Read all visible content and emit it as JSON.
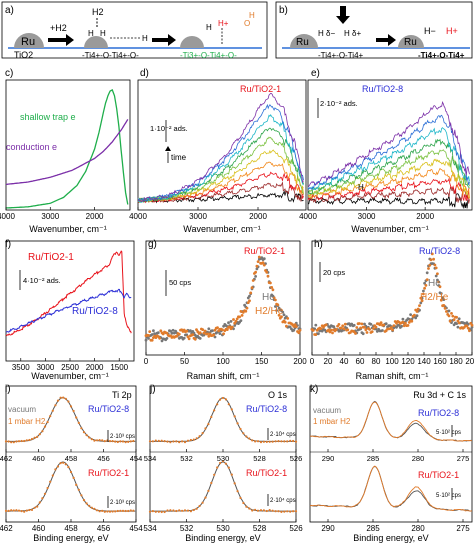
{
  "colors": {
    "red": "#e8131b",
    "blue": "#2c2fd6",
    "green": "#1fae4b",
    "purple": "#7b2fa8",
    "orange": "#e07b2b",
    "gray": "#777777",
    "dark": "#333333",
    "ru_gray": "#9a9a9a",
    "light_gray": "#cfcfcf"
  },
  "scheme_a": {
    "panel_label": "a)",
    "ru_label": "Ru",
    "support_label": "TiO2",
    "h2_reactant": "+H2",
    "h2_above": "H2",
    "h_atom": "H",
    "ti_o_chain_1": "-Ti4+-O-Ti4+-O-",
    "ti3_chain": "-Ti3+-O-Ti4+-O-",
    "h_plus": "H+",
    "oh_label": "O"
  },
  "scheme_b": {
    "panel_label": "b)",
    "ru_label": "Ru",
    "h_delta_minus": "H δ−",
    "h_delta_plus": "H δ+",
    "chain": "-Ti4+-O-Ti4+",
    "h_minus": "H−",
    "h_plus": "H+",
    "product_chain": "-Ti4+-O-Ti4+"
  },
  "chart_data": [
    {
      "panel": "c)",
      "type": "line",
      "xlabel": "Wavenumber, cm⁻¹",
      "x_ticks": [
        4000,
        3000,
        2000
      ],
      "xlim": [
        4000,
        1200
      ],
      "series": [
        {
          "name": "shallow trap e",
          "color": "#1fae4b",
          "x": [
            4000,
            3500,
            3000,
            2700,
            2400,
            2200,
            2000,
            1900,
            1800,
            1750,
            1700,
            1650,
            1600,
            1550,
            1500,
            1450,
            1400,
            1350,
            1300,
            1250
          ],
          "y": [
            0.0,
            0.01,
            0.04,
            0.09,
            0.19,
            0.31,
            0.5,
            0.64,
            0.81,
            0.89,
            0.95,
            0.99,
            1.0,
            0.95,
            0.84,
            0.69,
            0.49,
            0.3,
            0.13,
            0.03
          ]
        },
        {
          "name": "conduction e",
          "color": "#7b2fa8",
          "x": [
            4000,
            3500,
            3000,
            2500,
            2000,
            1800,
            1600,
            1400,
            1250
          ],
          "y": [
            0.2,
            0.22,
            0.26,
            0.32,
            0.42,
            0.48,
            0.56,
            0.66,
            0.75
          ]
        }
      ]
    },
    {
      "panel": "d)",
      "type": "line",
      "title": "Ru/TiO2-1",
      "xlabel": "Wavenumber, cm⁻¹",
      "x_ticks": [
        4000,
        3000,
        2000
      ],
      "xlim": [
        4000,
        1200
      ],
      "scale_label": "1·10⁻² ads.",
      "arrow_label": "time",
      "n_series": 10,
      "profile": {
        "x": [
          4000,
          3500,
          3000,
          2500,
          2200,
          2000,
          1800,
          1600,
          1400,
          1250
        ],
        "y": [
          0.0,
          0.04,
          0.18,
          0.45,
          0.68,
          0.85,
          1.0,
          0.88,
          0.55,
          0.2
        ]
      },
      "series_max": [
        0.05,
        0.14,
        0.24,
        0.34,
        0.45,
        0.56,
        0.66,
        0.76,
        0.87,
        0.96
      ],
      "series_colors": [
        "#000000",
        "#9c2a2a",
        "#e8131b",
        "#f28a1e",
        "#d9c11e",
        "#7cc242",
        "#2fa54c",
        "#1fb7c9",
        "#2c6fd6",
        "#7b2fa8"
      ]
    },
    {
      "panel": "e)",
      "type": "line",
      "title": "Ru/TiO2-8",
      "xlabel": "Wavenumber, cm⁻¹",
      "x_ticks": [
        4000,
        3000,
        2000
      ],
      "xlim": [
        4000,
        1200
      ],
      "scale_label": "2·10⁻² ads.",
      "annotation": "H",
      "n_series": 10,
      "profile": {
        "x": [
          4000,
          3500,
          3000,
          2500,
          2200,
          1900,
          1700,
          1550,
          1400,
          1250
        ],
        "y": [
          0.15,
          0.3,
          0.48,
          0.66,
          0.8,
          0.95,
          1.0,
          0.8,
          0.5,
          0.25
        ]
      },
      "series_max": [
        0.0,
        0.1,
        0.2,
        0.3,
        0.4,
        0.5,
        0.6,
        0.72,
        0.84,
        0.96
      ],
      "series_colors": [
        "#000000",
        "#9c2a2a",
        "#e8131b",
        "#f28a1e",
        "#d9c11e",
        "#7cc242",
        "#2fa54c",
        "#1fb7c9",
        "#2c6fd6",
        "#7b2fa8"
      ]
    },
    {
      "panel": "f)",
      "type": "line",
      "xlabel": "Wavenumber, cm⁻¹",
      "x_ticks": [
        3500,
        3000,
        2500,
        2000,
        1500
      ],
      "xlim": [
        3800,
        1200
      ],
      "scale_label": "4·10⁻² ads.",
      "series": [
        {
          "name": "Ru/TiO2-1",
          "color": "#e8131b",
          "x": [
            3800,
            3600,
            3400,
            3200,
            3000,
            2800,
            2600,
            2400,
            2200,
            2000,
            1900,
            1800,
            1700,
            1650,
            1600,
            1550,
            1500,
            1450,
            1400,
            1350,
            1300,
            1250
          ],
          "y": [
            0.18,
            0.22,
            0.27,
            0.33,
            0.4,
            0.47,
            0.55,
            0.62,
            0.7,
            0.77,
            0.8,
            0.83,
            0.87,
            0.92,
            0.96,
            0.99,
            0.95,
            1.0,
            0.4,
            0.3,
            0.24,
            0.2
          ]
        },
        {
          "name": "Ru/TiO2-8",
          "color": "#2c2fd6",
          "x": [
            3800,
            3600,
            3400,
            3200,
            3000,
            2800,
            2600,
            2400,
            2200,
            2000,
            1900,
            1800,
            1700,
            1650,
            1600,
            1550,
            1500,
            1450,
            1400,
            1350,
            1300,
            1250
          ],
          "y": [
            0.22,
            0.25,
            0.29,
            0.33,
            0.37,
            0.41,
            0.45,
            0.48,
            0.52,
            0.55,
            0.57,
            0.58,
            0.6,
            0.62,
            0.61,
            0.6,
            0.62,
            0.6,
            0.55,
            0.58,
            0.56,
            0.55
          ]
        }
      ]
    },
    {
      "panel": "g)",
      "type": "scatter",
      "title": "Ru/TiO2-1",
      "xlabel": "Raman shift, cm⁻¹",
      "x_ticks": [
        0,
        50,
        100,
        150,
        200
      ],
      "xlim": [
        0,
        200
      ],
      "scale_label": "50 cps",
      "peak_center": 150,
      "peak_width": 16,
      "baseline": 0.12,
      "series": [
        {
          "name": "He",
          "color": "#777777"
        },
        {
          "name": "H2/He",
          "color": "#e07b2b"
        }
      ]
    },
    {
      "panel": "h)",
      "type": "scatter",
      "title": "Ru/TiO2-8",
      "xlabel": "Raman shift, cm⁻¹",
      "x_ticks": [
        0,
        20,
        40,
        60,
        80,
        100,
        120,
        140,
        160,
        180,
        200
      ],
      "xlim": [
        0,
        200
      ],
      "scale_label": "20 cps",
      "peak_center": 150,
      "peak_width": 11,
      "baseline": 0.2,
      "series": [
        {
          "name": "He",
          "color": "#777777"
        },
        {
          "name": "H2/He",
          "color": "#e07b2b"
        }
      ]
    },
    {
      "panel": "i)",
      "type": "scatter",
      "title": "Ti 2p",
      "xlabel": "Binding energy, eV",
      "x_ticks": [
        462,
        460,
        458,
        456,
        454
      ],
      "xlim": [
        462,
        454
      ],
      "peak_center": 458.5,
      "peak_width": 0.75,
      "scale_label_top": "2·10³ cps",
      "scale_label_bottom": "2·10³ cps",
      "sample_top": "Ru/TiO2-8",
      "sample_bottom": "Ru/TiO2-1",
      "legend": [
        "vacuum",
        "1 mbar H2"
      ]
    },
    {
      "panel": "j)",
      "type": "scatter",
      "title": "O 1s",
      "xlabel": "Binding energy, eV",
      "x_ticks": [
        534,
        532,
        530,
        528,
        526
      ],
      "xlim": [
        534,
        526
      ],
      "peak_center": 530.0,
      "peak_width": 0.6,
      "scale_label_top": "2·10⁴ cps",
      "scale_label_bottom": "2·10⁴ cps",
      "sample_top": "Ru/TiO2-8",
      "sample_bottom": "Ru/TiO2-1"
    },
    {
      "panel": "k)",
      "type": "line",
      "title": "Ru 3d + C 1s",
      "xlabel": "Binding energy, eV",
      "x_ticks": [
        290,
        285,
        280,
        275
      ],
      "xlim": [
        292,
        274
      ],
      "scale_label_top": "5·10² cps",
      "scale_label_bottom": "5·10² cps",
      "sample_top": "Ru/TiO2-8",
      "sample_bottom": "Ru/TiO2-1",
      "legend": [
        "vacuum",
        "1 mbar H2"
      ]
    }
  ]
}
